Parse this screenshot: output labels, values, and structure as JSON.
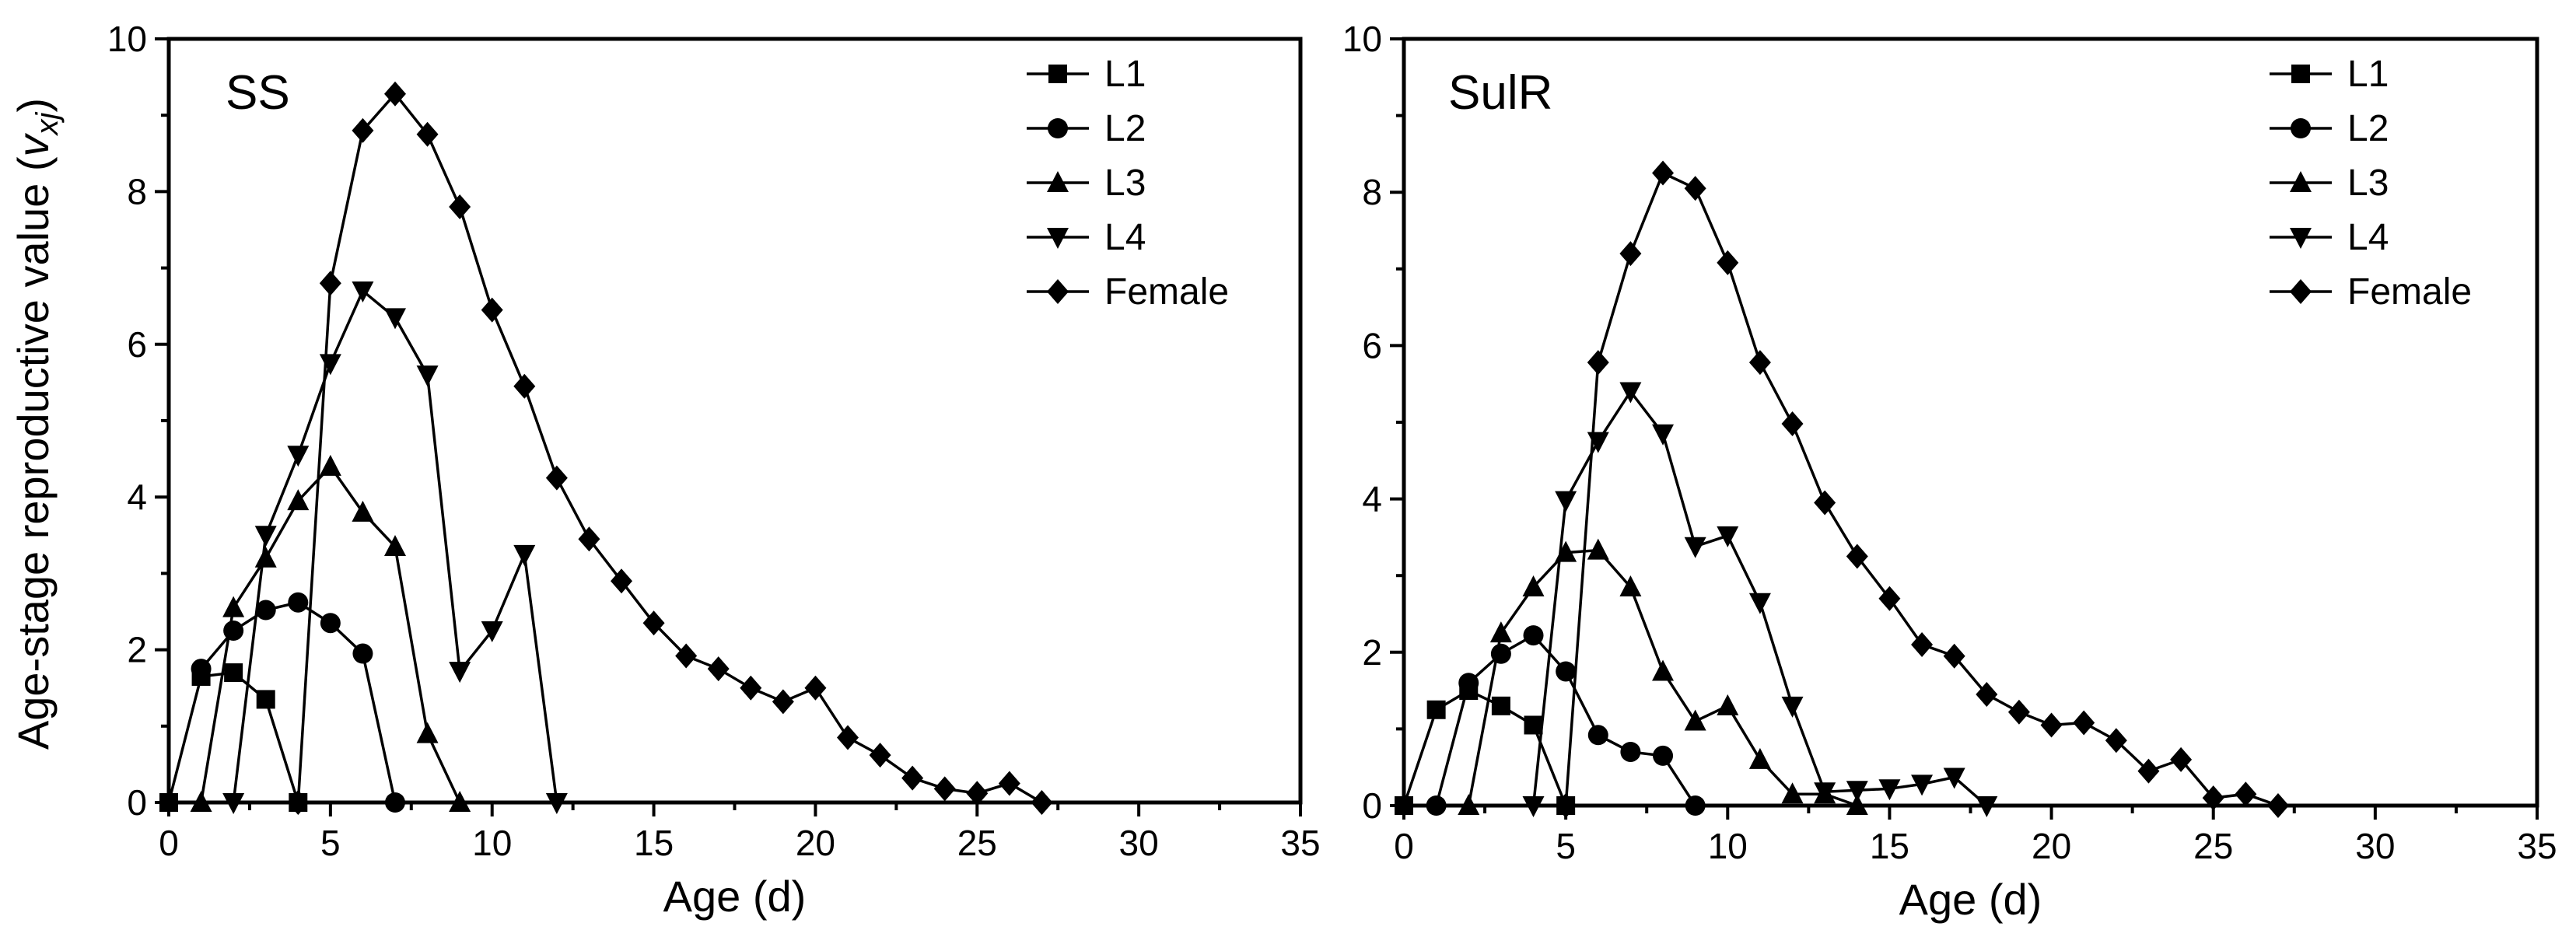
{
  "y_axis_label": "Age-stage reproductive value (",
  "y_axis_var": "v",
  "y_axis_sub": "xj",
  "y_axis_close": ")",
  "chart_data": [
    {
      "type": "line",
      "title": "SS",
      "xlabel": "Age (d)",
      "xlim": [
        0,
        35
      ],
      "ylim": [
        0,
        10
      ],
      "xticks": [
        0,
        5,
        10,
        15,
        20,
        25,
        30,
        35
      ],
      "yticks": [
        0,
        2,
        4,
        6,
        8,
        10
      ],
      "legend_position": "top-right",
      "series": [
        {
          "name": "L1",
          "marker": "square",
          "x": [
            0,
            1,
            2,
            3,
            4
          ],
          "y": [
            0,
            1.65,
            1.7,
            1.35,
            0
          ]
        },
        {
          "name": "L2",
          "marker": "circle",
          "x": [
            1,
            2,
            3,
            4,
            5,
            6,
            7
          ],
          "y": [
            1.75,
            2.25,
            2.52,
            2.62,
            2.35,
            1.95,
            0
          ]
        },
        {
          "name": "L3",
          "marker": "triangle-up",
          "x": [
            1,
            2,
            3,
            4,
            5,
            6,
            7,
            8,
            9
          ],
          "y": [
            0,
            2.55,
            3.2,
            3.95,
            4.4,
            3.8,
            3.35,
            0.9,
            0
          ]
        },
        {
          "name": "L4",
          "marker": "triangle-down",
          "x": [
            2,
            3,
            4,
            5,
            6,
            7,
            8,
            9,
            10,
            11,
            12
          ],
          "y": [
            0,
            3.5,
            4.55,
            5.75,
            6.7,
            6.35,
            5.6,
            1.72,
            2.25,
            3.25,
            0
          ]
        },
        {
          "name": "Female",
          "marker": "diamond",
          "x": [
            4,
            5,
            6,
            7,
            8,
            9,
            10,
            11,
            12,
            13,
            14,
            15,
            16,
            17,
            18,
            19,
            20,
            21,
            22,
            23,
            24,
            25,
            26,
            27
          ],
          "y": [
            0,
            6.8,
            8.8,
            9.28,
            8.75,
            7.8,
            6.45,
            5.45,
            4.25,
            3.45,
            2.9,
            2.35,
            1.92,
            1.75,
            1.5,
            1.32,
            1.5,
            0.85,
            0.62,
            0.32,
            0.18,
            0.12,
            0.25,
            0
          ]
        }
      ]
    },
    {
      "type": "line",
      "title": "SulR",
      "xlabel": "Age (d)",
      "xlim": [
        0,
        35
      ],
      "ylim": [
        0,
        10
      ],
      "xticks": [
        0,
        5,
        10,
        15,
        20,
        25,
        30,
        35
      ],
      "yticks": [
        0,
        2,
        4,
        6,
        8,
        10
      ],
      "legend_position": "top-right",
      "series": [
        {
          "name": "L1",
          "marker": "square",
          "x": [
            0,
            1,
            2,
            3,
            4,
            5
          ],
          "y": [
            0,
            1.25,
            1.5,
            1.3,
            1.05,
            0
          ]
        },
        {
          "name": "L2",
          "marker": "circle",
          "x": [
            1,
            2,
            3,
            4,
            5,
            6,
            7,
            8,
            9
          ],
          "y": [
            0,
            1.6,
            1.98,
            2.22,
            1.75,
            0.92,
            0.7,
            0.65,
            0
          ]
        },
        {
          "name": "L3",
          "marker": "triangle-up",
          "x": [
            2,
            3,
            4,
            5,
            6,
            7,
            8,
            9,
            10,
            11,
            12,
            13,
            14
          ],
          "y": [
            0,
            2.25,
            2.85,
            3.3,
            3.33,
            2.85,
            1.75,
            1.1,
            1.3,
            0.6,
            0.15,
            0.15,
            0
          ]
        },
        {
          "name": "L4",
          "marker": "triangle-down",
          "x": [
            4,
            5,
            6,
            7,
            8,
            9,
            10,
            11,
            12,
            13,
            14,
            15,
            16,
            17,
            18
          ],
          "y": [
            0,
            3.98,
            4.75,
            5.4,
            4.85,
            3.38,
            3.52,
            2.65,
            1.3,
            0.18,
            0.2,
            0.22,
            0.28,
            0.37,
            0
          ]
        },
        {
          "name": "Female",
          "marker": "diamond",
          "x": [
            5,
            6,
            7,
            8,
            9,
            10,
            11,
            12,
            13,
            14,
            15,
            16,
            17,
            18,
            19,
            20,
            21,
            22,
            23,
            24,
            25,
            26,
            27
          ],
          "y": [
            0,
            5.78,
            7.2,
            8.25,
            8.05,
            7.08,
            5.78,
            4.98,
            3.95,
            3.25,
            2.7,
            2.1,
            1.95,
            1.45,
            1.22,
            1.05,
            1.08,
            0.85,
            0.45,
            0.6,
            0.1,
            0.15,
            0
          ]
        }
      ]
    }
  ]
}
